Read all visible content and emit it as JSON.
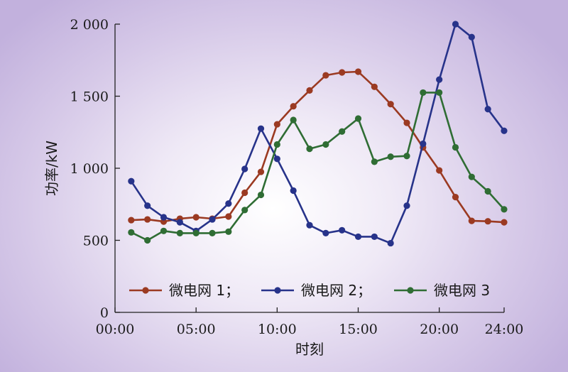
{
  "chart_data": {
    "type": "line",
    "xlabel": "时刻",
    "ylabel": "功率/kW",
    "xlim": [
      0,
      24
    ],
    "ylim": [
      0,
      2000
    ],
    "x_ticks": [
      {
        "value": 0,
        "label": "00:00"
      },
      {
        "value": 5,
        "label": "05:00"
      },
      {
        "value": 10,
        "label": "10:00"
      },
      {
        "value": 15,
        "label": "15:00"
      },
      {
        "value": 20,
        "label": "20:00"
      },
      {
        "value": 24,
        "label": "24:00"
      }
    ],
    "y_ticks": [
      {
        "value": 0,
        "label": "0"
      },
      {
        "value": 500,
        "label": "500"
      },
      {
        "value": 1000,
        "label": "1 000"
      },
      {
        "value": 1500,
        "label": "1 500"
      },
      {
        "value": 2000,
        "label": "2 000"
      }
    ],
    "grid": false,
    "legend_position": "bottom-center",
    "x": [
      1,
      2,
      3,
      4,
      5,
      6,
      7,
      8,
      9,
      10,
      11,
      12,
      13,
      14,
      15,
      16,
      17,
      18,
      19,
      20,
      21,
      22,
      23,
      24
    ],
    "series": [
      {
        "name": "微电网 1；",
        "color": "#9b3a22",
        "values": [
          640,
          645,
          630,
          650,
          660,
          650,
          665,
          830,
          975,
          1305,
          1430,
          1540,
          1645,
          1665,
          1670,
          1565,
          1445,
          1315,
          1145,
          985,
          800,
          635,
          632,
          625
        ]
      },
      {
        "name": "微电网 2；",
        "color": "#27338a",
        "values": [
          910,
          740,
          660,
          625,
          565,
          645,
          755,
          995,
          1275,
          1065,
          845,
          605,
          550,
          570,
          525,
          525,
          480,
          740,
          1170,
          1615,
          2000,
          1910,
          1410,
          1260
        ]
      },
      {
        "name": "微电网 3",
        "color": "#2f6d34",
        "values": [
          555,
          500,
          565,
          550,
          550,
          550,
          560,
          710,
          815,
          1165,
          1335,
          1135,
          1165,
          1255,
          1345,
          1045,
          1080,
          1085,
          1525,
          1525,
          1145,
          940,
          840,
          715
        ]
      }
    ]
  }
}
